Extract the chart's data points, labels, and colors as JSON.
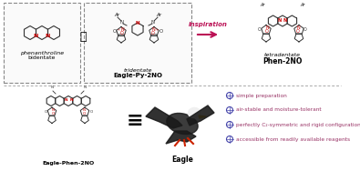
{
  "bg_color": "#ffffff",
  "border_color": "#999999",
  "arrow_color": "#bb1155",
  "red_color": "#cc0000",
  "purple_color": "#4444aa",
  "pink_color": "#bb2266",
  "label_bidentate": "bidentate",
  "label_tridentate": "tridentate",
  "label_eagle_py_2no": "Eagle-Py-2NO",
  "label_tetradentate": "tetradentate",
  "label_phen_2no": "Phen-2NO",
  "label_eagle_phen_2no": "Eagle-Phen-2NO",
  "label_eagle": "Eagle",
  "label_inspiration": "Inspiration",
  "label_phenanthroline": "phenanthroline",
  "bullet_items": [
    "simple preparation",
    "air-stable and moisture-tolerant",
    "perfectly C₂-symmetric and rigid configuration",
    "accessible from readily available reagents"
  ],
  "bullet_color": "#4444aa",
  "bullet_text_color": "#993366"
}
